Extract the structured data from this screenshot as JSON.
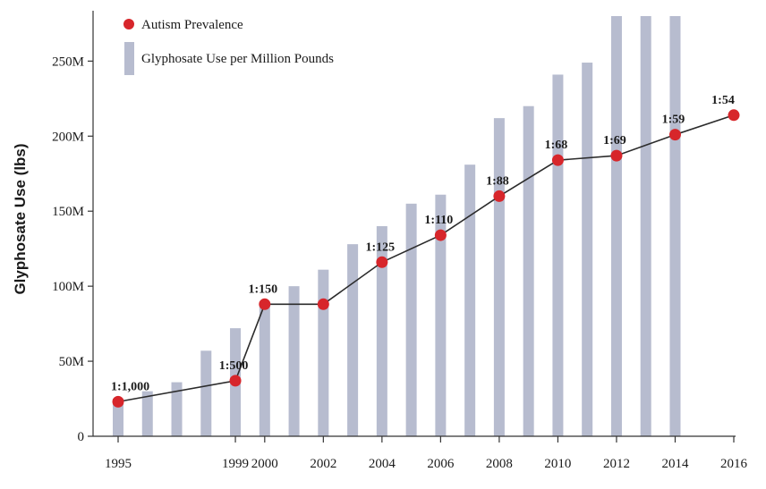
{
  "colors": {
    "bar": "#b7bccf",
    "line": "#2b2b2b",
    "point": "#d7262b",
    "axis": "#333333"
  },
  "legend": {
    "points_label": "Autism Prevalence",
    "bars_label": "Glyphosate Use per Million Pounds",
    "placement": "top-left"
  },
  "chart_data": {
    "type": "bar",
    "ylabel": "Glyphosate Use (lbs)",
    "xlabel": "",
    "ylim": [
      0,
      280
    ],
    "yticks": [
      {
        "value": 0,
        "label": "0"
      },
      {
        "value": 50,
        "label": "50M"
      },
      {
        "value": 100,
        "label": "100M"
      },
      {
        "value": 150,
        "label": "150M"
      },
      {
        "value": 200,
        "label": "200M"
      },
      {
        "value": 250,
        "label": "250M"
      }
    ],
    "xlim": [
      1995,
      2016
    ],
    "xticks": [
      1995,
      1999,
      2000,
      2002,
      2004,
      2006,
      2008,
      2010,
      2012,
      2014,
      2016
    ],
    "grid": false,
    "series": [
      {
        "name": "Glyphosate Use per Million Pounds",
        "type": "bar",
        "x": [
          1995,
          1996,
          1997,
          1998,
          1999,
          2000,
          2001,
          2002,
          2003,
          2004,
          2005,
          2006,
          2007,
          2008,
          2009,
          2010,
          2011,
          2012,
          2013,
          2014
        ],
        "values": [
          25,
          30,
          36,
          57,
          72,
          88,
          100,
          111,
          128,
          140,
          155,
          161,
          181,
          212,
          220,
          241,
          249,
          285,
          284,
          286
        ]
      },
      {
        "name": "Autism Prevalence",
        "type": "line",
        "x": [
          1995,
          1999,
          2000,
          2002,
          2004,
          2006,
          2008,
          2010,
          2012,
          2014,
          2016
        ],
        "values": [
          23,
          37,
          88,
          88,
          116,
          134,
          160,
          184,
          187,
          201,
          214
        ],
        "labels": [
          "1:1,000",
          "1:500",
          "1:150",
          "",
          "1:125",
          "1:110",
          "1:88",
          "1:68",
          "1:69",
          "1:59",
          "1:54"
        ]
      }
    ]
  }
}
